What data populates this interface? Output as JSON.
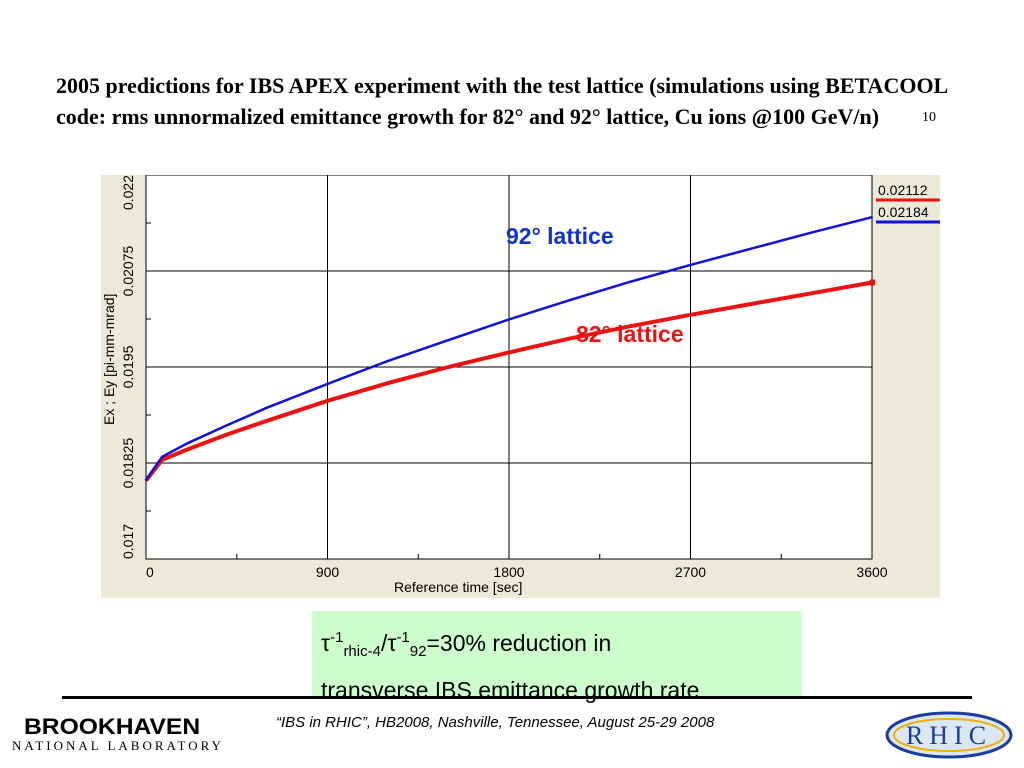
{
  "slide": {
    "title": "2005 predictions for IBS APEX experiment with the test lattice (simulations using BETACOOL code: rms unnormalized emittance growth for 82° and 92° lattice, Cu ions @100 GeV/n)",
    "page_number": "10"
  },
  "chart_data": {
    "type": "line",
    "xlabel": "Reference time [sec]",
    "ylabel": "Ex ; Ey [pi-mm-mrad]",
    "xlim": [
      0,
      3600
    ],
    "ylim": [
      0.017,
      0.022
    ],
    "x_ticks": [
      "0",
      "900",
      "1800",
      "2700",
      "3600"
    ],
    "y_ticks": [
      "0.017",
      "0.01825",
      "0.0195",
      "0.02075",
      "0.022"
    ],
    "grid": true,
    "background_color": "#ece9d8",
    "series": [
      {
        "name": "82° lattice",
        "color": "#ee1111",
        "legend_value": "0.02112",
        "x": [
          0,
          80,
          200,
          400,
          600,
          900,
          1200,
          1500,
          1800,
          2100,
          2400,
          2700,
          3000,
          3300,
          3600
        ],
        "y": [
          0.01802,
          0.01829,
          0.01842,
          0.01862,
          0.0188,
          0.01906,
          0.01929,
          0.0195,
          0.01969,
          0.01987,
          0.02003,
          0.02018,
          0.02032,
          0.02046,
          0.0206
        ]
      },
      {
        "name": "92° lattice",
        "color": "#1111dd",
        "legend_value": "0.02184",
        "x": [
          0,
          80,
          200,
          400,
          600,
          900,
          1200,
          1500,
          1800,
          2100,
          2400,
          2700,
          3000,
          3300,
          3600
        ],
        "y": [
          0.01803,
          0.01833,
          0.0185,
          0.01874,
          0.01897,
          0.01928,
          0.01958,
          0.01985,
          0.02012,
          0.02037,
          0.02061,
          0.02083,
          0.02104,
          0.02125,
          0.02145
        ]
      }
    ],
    "annotations": [
      {
        "text": "92° lattice",
        "color": "#1133cc"
      },
      {
        "text": "82° lattice",
        "color": "#ee1111"
      }
    ]
  },
  "info_box": {
    "tau": "τ",
    "exp": "-1",
    "sub1": "rhic-4",
    "slash": "/",
    "sub2": "92",
    "rest": "=30% reduction in",
    "line2": "transverse IBS emittance growth rate"
  },
  "footer": {
    "citation": "“IBS in RHIC”, HB2008, Nashville, Tennessee, August 25-29  2008",
    "bnl_name": "BROOKHAVEN",
    "bnl_sub": "NATIONAL LABORATORY",
    "rhic_label": "RHIC"
  }
}
